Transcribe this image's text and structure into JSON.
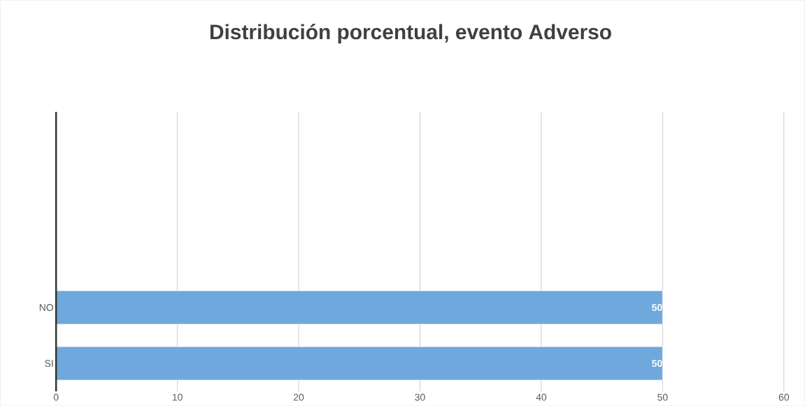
{
  "chart_data": {
    "type": "bar",
    "orientation": "horizontal",
    "title": "Distribución porcentual, evento Adverso",
    "categories": [
      null,
      null,
      null,
      "NO",
      "SI"
    ],
    "values": [
      null,
      null,
      null,
      50,
      50
    ],
    "color": "#6fa8dc",
    "data_labels": true,
    "grid": "x",
    "xlim": [
      0,
      60
    ],
    "xticks": [
      0,
      10,
      20,
      30,
      40,
      50,
      60
    ]
  }
}
